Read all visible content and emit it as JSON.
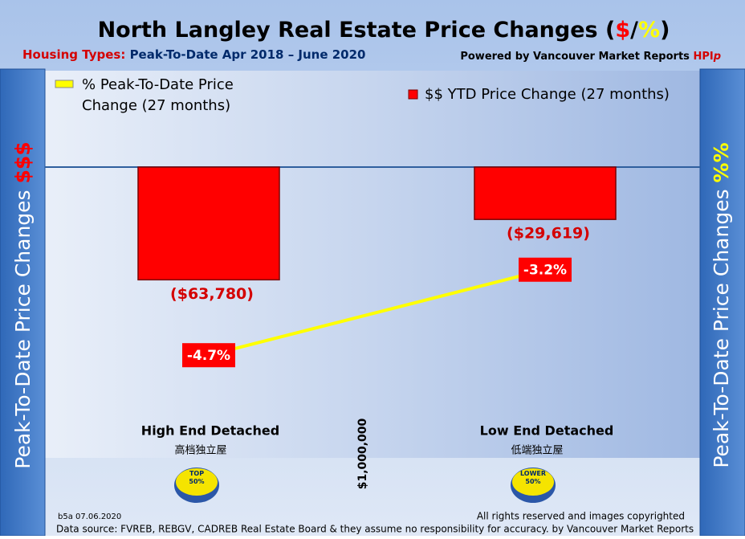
{
  "chart_data": {
    "type": "bar-line",
    "title_parts": [
      "North Langley Real Estate Price Changes (",
      "$",
      "/",
      "%",
      ")"
    ],
    "subtitle_label": "Housing Types:",
    "subtitle": "Peak-To-Date Apr 2018 – June 2020",
    "credit": "Powered by Vancouver Market Reports",
    "credit_brand": "HPI",
    "credit_brand_suffix": "p",
    "left_axis_label": "Peak-To-Date Price Changes",
    "left_axis_symbol": "$$$",
    "right_axis_label": "Peak-To-Date  Price  Changes",
    "right_axis_symbol": "%%",
    "categories": [
      "High End Detached",
      "Low End Detached"
    ],
    "category_subtitles": [
      "高档独立屋",
      "低端独立屋"
    ],
    "badges": [
      "TOP 50%",
      "LOWER 50%"
    ],
    "divider_label": "$1,000,000",
    "ylim": [
      0,
      -200000
    ],
    "y2lim": [
      -1.4,
      -7.6
    ],
    "legend": "top",
    "series": [
      {
        "name": "$$ YTD Price Change (27 months)",
        "color": "#ff0000",
        "values": [
          -63780,
          -29619
        ],
        "value_labels": [
          "($63,780)",
          "($29,619)"
        ]
      },
      {
        "name": "% Peak-To-Date Price Change (27 months)",
        "color": "#ffff00",
        "axis": "y2",
        "values": [
          -4.7,
          -3.2
        ],
        "value_labels": [
          "-4.7%",
          "-3.2%"
        ]
      }
    ],
    "footnote_code": "b5a 07.06.2020",
    "copyright": "All rights reserved and  images copyrighted",
    "source": "Data source: FVREB, REBGV, CADREB Real Estate Board & they assume no responsibility for accuracy. by Vancouver Market Reports"
  }
}
